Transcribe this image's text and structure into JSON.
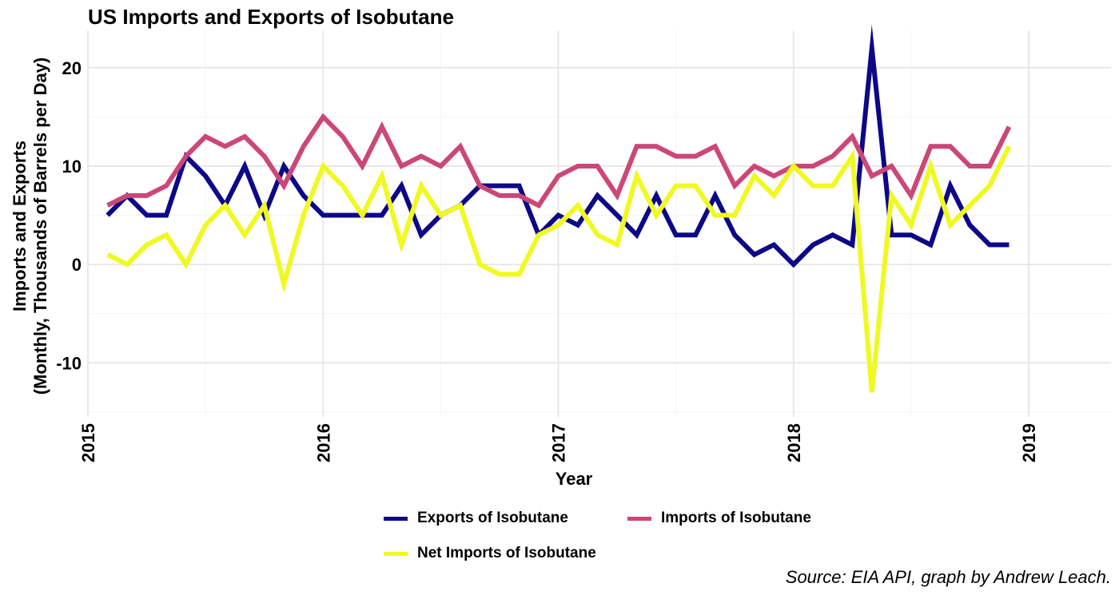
{
  "chart_data": {
    "type": "line",
    "title": "US Imports and Exports of Isobutane",
    "xlabel": "Year",
    "ylabel_lines": [
      "Imports and Exports",
      "(Monthly, Thousands of Barrels per Day)"
    ],
    "xlim": [
      2015.0,
      2019.35
    ],
    "ylim": [
      -15.5,
      23.8
    ],
    "x_ticks": [
      2015,
      2016,
      2017,
      2018,
      2019
    ],
    "y_ticks": [
      -10,
      0,
      10,
      20
    ],
    "grid": true,
    "legend_position": "bottom",
    "caption": "Source: EIA API, graph by Andrew Leach.",
    "x": [
      "2015-02",
      "2015-03",
      "2015-04",
      "2015-05",
      "2015-06",
      "2015-07",
      "2015-08",
      "2015-09",
      "2015-10",
      "2015-11",
      "2015-12",
      "2016-01",
      "2016-02",
      "2016-03",
      "2016-04",
      "2016-05",
      "2016-06",
      "2016-07",
      "2016-08",
      "2016-09",
      "2016-10",
      "2016-11",
      "2016-12",
      "2017-01",
      "2017-02",
      "2017-03",
      "2017-04",
      "2017-05",
      "2017-06",
      "2017-07",
      "2017-08",
      "2017-09",
      "2017-10",
      "2017-11",
      "2017-12",
      "2018-01",
      "2018-02",
      "2018-03",
      "2018-04",
      "2018-05",
      "2018-06",
      "2018-07",
      "2018-08",
      "2018-09",
      "2018-10",
      "2018-11",
      "2018-12"
    ],
    "series": [
      {
        "name": "Exports of Isobutane",
        "color": "#0d0887",
        "values": [
          5,
          7,
          5,
          5,
          11,
          9,
          6,
          10,
          5,
          10,
          7,
          5,
          5,
          5,
          5,
          8,
          3,
          5,
          6,
          8,
          8,
          8,
          3,
          5,
          4,
          7,
          5,
          3,
          7,
          3,
          3,
          7,
          3,
          1,
          2,
          0,
          2,
          3,
          2,
          22,
          3,
          3,
          2,
          8,
          4,
          2,
          2
        ]
      },
      {
        "name": "Imports of Isobutane",
        "color": "#cc4778",
        "values": [
          6,
          7,
          7,
          8,
          11,
          13,
          12,
          13,
          11,
          8,
          12,
          15,
          13,
          10,
          14,
          10,
          11,
          10,
          12,
          8,
          7,
          7,
          6,
          9,
          10,
          10,
          7,
          12,
          12,
          11,
          11,
          12,
          8,
          10,
          9,
          10,
          10,
          11,
          13,
          9,
          10,
          7,
          12,
          12,
          10,
          10,
          14
        ]
      },
      {
        "name": "Net Imports of Isobutane",
        "color": "#f0f921",
        "values": [
          1,
          0,
          2,
          3,
          0,
          4,
          6,
          3,
          6,
          -2,
          5,
          10,
          8,
          5,
          9,
          2,
          8,
          5,
          6,
          0,
          -1,
          -1,
          3,
          4,
          6,
          3,
          2,
          9,
          5,
          8,
          8,
          5,
          5,
          9,
          7,
          10,
          8,
          8,
          11,
          -13,
          7,
          4,
          10,
          4,
          6,
          8,
          12
        ]
      }
    ]
  }
}
